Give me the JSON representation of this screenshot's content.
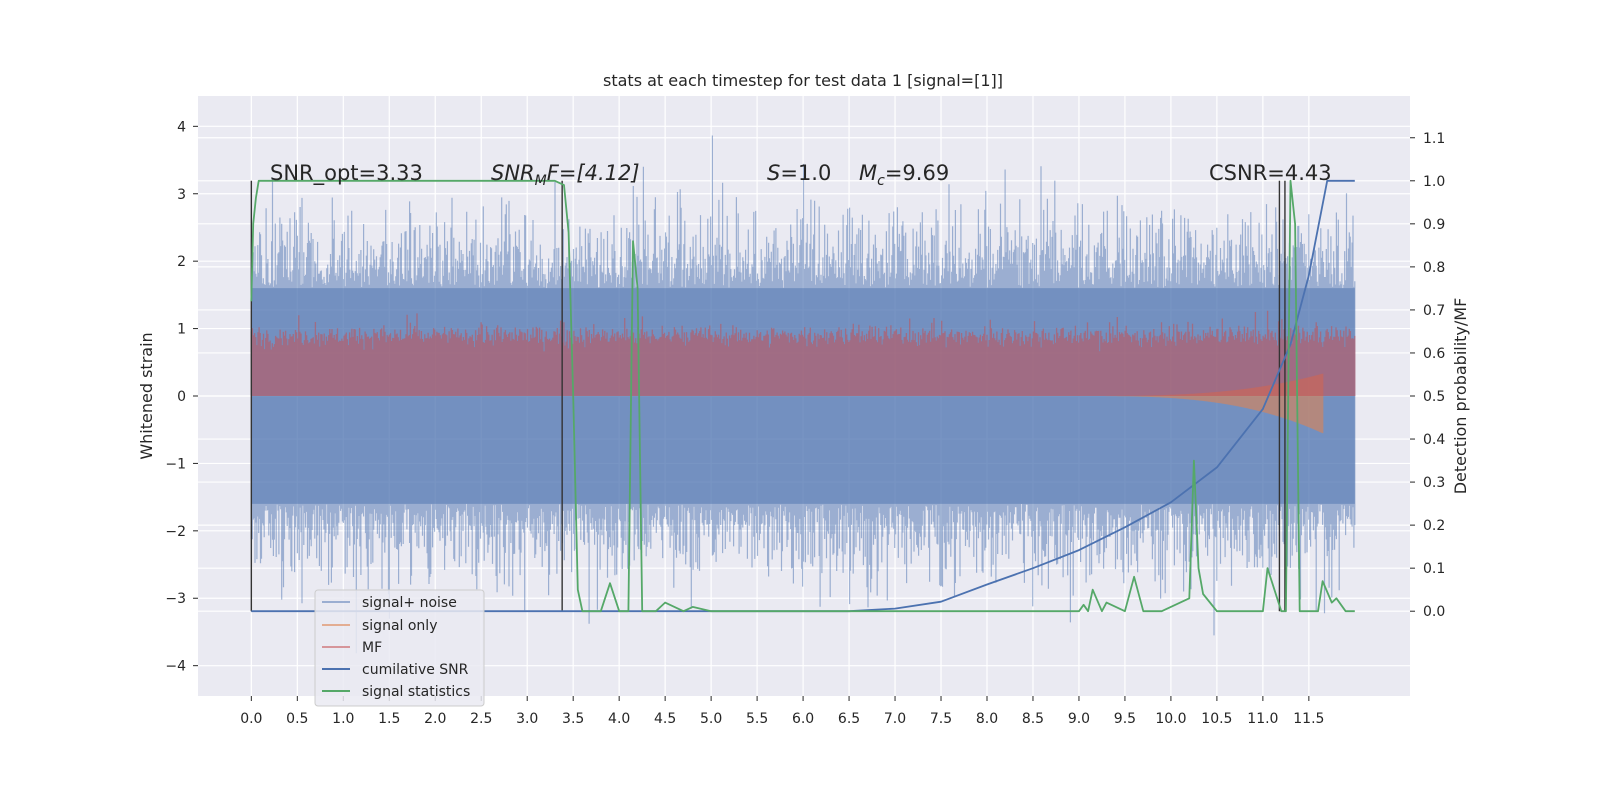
{
  "chart_data": {
    "type": "line",
    "title": "stats at each timestep for test data 1 [signal=[1]]",
    "ylabel_left": "Whitened strain",
    "ylabel_right": "Detection probability/MF",
    "xlim": [
      -0.58,
      12.6
    ],
    "ylim_left": [
      -4.45,
      4.45
    ],
    "ylim_right": [
      -0.197,
      1.197
    ],
    "x_ticks": [
      "0.0",
      "0.5",
      "1.0",
      "1.5",
      "2.0",
      "2.5",
      "3.0",
      "3.5",
      "4.0",
      "4.5",
      "5.0",
      "5.5",
      "6.0",
      "6.5",
      "7.0",
      "7.5",
      "8.0",
      "8.5",
      "9.0",
      "9.5",
      "10.0",
      "10.5",
      "11.0",
      "11.5"
    ],
    "y_ticks_left": [
      "4",
      "3",
      "2",
      "1",
      "0",
      "−1",
      "−2",
      "−3",
      "−4"
    ],
    "y_ticks_right": [
      "1.1",
      "1.0",
      "0.9",
      "0.8",
      "0.7",
      "0.6",
      "0.5",
      "0.4",
      "0.3",
      "0.2",
      "0.1",
      "0.0"
    ],
    "x_range": [
      0.0,
      12.0
    ],
    "grid": true,
    "legend_position": "lower-left",
    "annotations": {
      "snr_opt": "SNR_opt=3.33",
      "snr_mf_main": "SNR",
      "snr_mf_sub": "M",
      "snr_mf_rest": "F=[4.12]",
      "s_main": "S",
      "s_rest": "=1.0",
      "mc_main": "M",
      "mc_sub": "c",
      "mc_rest": "=9.69",
      "csnr": "CSNR=4.43"
    },
    "series": [
      {
        "name": "signal+ noise",
        "color": "#4c72b0",
        "alpha": 0.5,
        "axis": "left",
        "noise_band": [
          -1.6,
          1.6
        ],
        "peaks": [
          -4.0,
          4.05
        ]
      },
      {
        "name": "signal only",
        "color": "#dd8452",
        "alpha": 0.6,
        "axis": "left",
        "chirp_start": 9.0,
        "chirp_end": 11.65,
        "amplitude_max": 0.55
      },
      {
        "name": "MF",
        "color": "#c44e52",
        "alpha": 0.55,
        "axis": "right",
        "band": [
          0.5,
          0.64
        ]
      },
      {
        "name": "cumilative SNR",
        "color": "#4c72b0",
        "axis": "right",
        "x": [
          0.0,
          6.5,
          7.0,
          7.5,
          8.0,
          8.5,
          9.0,
          9.5,
          10.0,
          10.5,
          11.0,
          11.3,
          11.5,
          11.7,
          12.0
        ],
        "y": [
          0.0,
          0.0,
          0.006,
          0.022,
          0.062,
          0.1,
          0.142,
          0.195,
          0.253,
          0.334,
          0.47,
          0.62,
          0.78,
          1.0,
          1.0
        ]
      },
      {
        "name": "signal statistics",
        "color": "#55a868",
        "axis": "right",
        "x": [
          0.0,
          0.02,
          0.05,
          0.08,
          0.1,
          3.3,
          3.4,
          3.45,
          3.5,
          3.55,
          3.6,
          3.7,
          3.8,
          3.9,
          4.0,
          4.1,
          4.15,
          4.2,
          4.25,
          4.3,
          4.4,
          4.45,
          4.5,
          4.7,
          4.8,
          5.0,
          8.8,
          9.0,
          9.05,
          9.1,
          9.15,
          9.25,
          9.3,
          9.5,
          9.6,
          9.7,
          9.9,
          10.2,
          10.25,
          10.3,
          10.35,
          10.5,
          10.9,
          11.0,
          11.05,
          11.2,
          11.25,
          11.3,
          11.35,
          11.4,
          11.6,
          11.65,
          11.75,
          11.8,
          11.9,
          12.0
        ],
        "y": [
          0.72,
          0.9,
          0.96,
          1.0,
          1.0,
          1.0,
          0.99,
          0.88,
          0.5,
          0.05,
          0.0,
          0.0,
          0.0,
          0.065,
          0.0,
          0.0,
          0.86,
          0.75,
          0.0,
          0.0,
          0.0,
          0.01,
          0.02,
          0.0,
          0.01,
          0.0,
          0.0,
          0.0,
          0.015,
          0.0,
          0.05,
          0.0,
          0.02,
          0.0,
          0.08,
          0.0,
          0.0,
          0.03,
          0.35,
          0.1,
          0.04,
          0.0,
          0.0,
          0.0,
          0.1,
          0.0,
          0.0,
          1.0,
          0.9,
          0.0,
          0.0,
          0.07,
          0.02,
          0.03,
          0.0,
          0.0
        ]
      }
    ],
    "markers": {
      "color": "#333333",
      "x": [
        0.0,
        3.38,
        11.18,
        11.24
      ],
      "y_range": [
        0.0,
        1.0
      ]
    }
  }
}
